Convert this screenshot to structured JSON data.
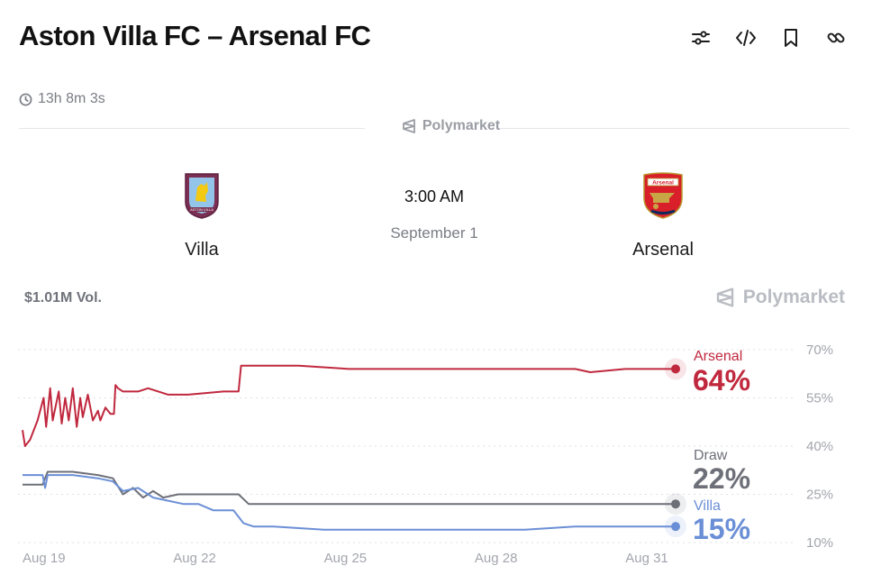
{
  "header": {
    "title": "Aston Villa FC – Arsenal FC",
    "toolbar": [
      {
        "name": "filter-icon"
      },
      {
        "name": "embed-code-icon"
      },
      {
        "name": "bookmark-icon"
      },
      {
        "name": "link-icon"
      }
    ]
  },
  "timer": {
    "text": "13h 8m 3s",
    "icon": "clock-icon"
  },
  "brand": {
    "name": "Polymarket"
  },
  "match": {
    "home": {
      "name": "Villa",
      "crest_icon": "aston-villa-crest-icon",
      "crest_label": "ASTON VILLA"
    },
    "away": {
      "name": "Arsenal",
      "crest_icon": "arsenal-crest-icon",
      "crest_label": "Arsenal"
    },
    "time": "3:00 AM",
    "date": "September 1"
  },
  "market": {
    "volume": "$1.01M Vol."
  },
  "colors": {
    "arsenal": "#c0283e",
    "draw": "#6e7079",
    "villa": "#6b8fd6"
  },
  "chart_data": {
    "type": "line",
    "x_ticks": [
      "Aug 19",
      "Aug 22",
      "Aug 25",
      "Aug 28",
      "Aug 31"
    ],
    "y_ticks": [
      "70%",
      "55%",
      "40%",
      "25%",
      "10%"
    ],
    "ylim": [
      10,
      70
    ],
    "grid": true,
    "legend": "right",
    "series": [
      {
        "name": "Arsenal",
        "current": "64%",
        "color": "#c0283e",
        "points": [
          [
            0,
            45
          ],
          [
            0.05,
            40
          ],
          [
            0.15,
            42
          ],
          [
            0.3,
            48
          ],
          [
            0.42,
            55
          ],
          [
            0.47,
            46
          ],
          [
            0.55,
            58
          ],
          [
            0.6,
            48
          ],
          [
            0.72,
            57
          ],
          [
            0.78,
            47
          ],
          [
            0.85,
            55
          ],
          [
            0.92,
            48
          ],
          [
            1.0,
            58
          ],
          [
            1.08,
            46
          ],
          [
            1.15,
            55
          ],
          [
            1.2,
            49
          ],
          [
            1.3,
            56
          ],
          [
            1.4,
            48
          ],
          [
            1.5,
            51
          ],
          [
            1.55,
            48
          ],
          [
            1.65,
            52
          ],
          [
            1.75,
            50
          ],
          [
            1.82,
            50
          ],
          [
            1.85,
            59
          ],
          [
            1.9,
            58
          ],
          [
            2.0,
            57
          ],
          [
            2.3,
            57
          ],
          [
            2.5,
            58
          ],
          [
            2.9,
            56
          ],
          [
            3.3,
            56
          ],
          [
            4.0,
            57
          ],
          [
            4.3,
            57
          ],
          [
            4.35,
            65
          ],
          [
            4.6,
            65
          ],
          [
            5.5,
            65
          ],
          [
            6.5,
            64
          ],
          [
            7.0,
            64
          ],
          [
            8.0,
            64
          ],
          [
            8.5,
            64
          ],
          [
            9.5,
            64
          ],
          [
            10.5,
            64
          ],
          [
            11.0,
            64
          ],
          [
            11.3,
            63
          ],
          [
            12.0,
            64
          ],
          [
            13.0,
            64
          ]
        ]
      },
      {
        "name": "Draw",
        "current": "22%",
        "color": "#6e7079",
        "points": [
          [
            0,
            28
          ],
          [
            0.4,
            28
          ],
          [
            0.5,
            32
          ],
          [
            1.0,
            32
          ],
          [
            1.5,
            31
          ],
          [
            1.8,
            30
          ],
          [
            2.0,
            25
          ],
          [
            2.2,
            27
          ],
          [
            2.4,
            24
          ],
          [
            2.6,
            26
          ],
          [
            2.8,
            24
          ],
          [
            3.1,
            25
          ],
          [
            3.4,
            25
          ],
          [
            3.7,
            25
          ],
          [
            4.0,
            25
          ],
          [
            4.3,
            25
          ],
          [
            4.5,
            22
          ],
          [
            5.0,
            22
          ],
          [
            6.0,
            22
          ],
          [
            7.0,
            22
          ],
          [
            8.0,
            22
          ],
          [
            9.0,
            22
          ],
          [
            10.0,
            22
          ],
          [
            11.0,
            22
          ],
          [
            12.0,
            22
          ],
          [
            13.0,
            22
          ]
        ]
      },
      {
        "name": "Villa",
        "current": "15%",
        "color": "#6b8fd6",
        "points": [
          [
            0,
            31
          ],
          [
            0.4,
            31
          ],
          [
            0.45,
            27
          ],
          [
            0.5,
            31
          ],
          [
            1.0,
            31
          ],
          [
            1.5,
            30
          ],
          [
            1.8,
            29
          ],
          [
            2.0,
            26
          ],
          [
            2.3,
            27
          ],
          [
            2.6,
            24
          ],
          [
            2.9,
            23
          ],
          [
            3.2,
            22
          ],
          [
            3.5,
            22
          ],
          [
            3.8,
            20
          ],
          [
            4.0,
            20
          ],
          [
            4.2,
            20
          ],
          [
            4.4,
            16
          ],
          [
            4.6,
            15
          ],
          [
            5.0,
            15
          ],
          [
            6.0,
            14
          ],
          [
            7.0,
            14
          ],
          [
            8.0,
            14
          ],
          [
            9.0,
            14
          ],
          [
            10.0,
            14
          ],
          [
            11.0,
            15
          ],
          [
            12.0,
            15
          ],
          [
            13.0,
            15
          ]
        ]
      }
    ]
  }
}
